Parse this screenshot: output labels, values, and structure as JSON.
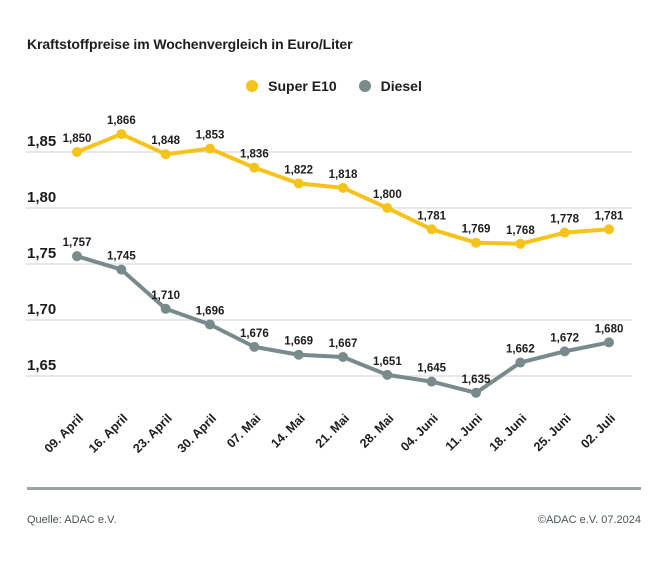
{
  "title": "Kraftstoffpreise im Wochenvergleich in Euro/Liter",
  "chart_data": {
    "type": "line",
    "title": "Kraftstoffpreise im Wochenvergleich in Euro/Liter",
    "xlabel": "",
    "ylabel": "Euro/Liter",
    "categories": [
      "09. April",
      "16. April",
      "23. April",
      "30. April",
      "07. Mai",
      "14. Mai",
      "21. Mai",
      "28. Mai",
      "04. Juni",
      "11. Juni",
      "18. Juni",
      "25. Juni",
      "02. Juli"
    ],
    "series": [
      {
        "name": "Super E10",
        "color": "#F5C31B",
        "values": [
          1.85,
          1.866,
          1.848,
          1.853,
          1.836,
          1.822,
          1.818,
          1.8,
          1.781,
          1.769,
          1.768,
          1.778,
          1.781
        ]
      },
      {
        "name": "Diesel",
        "color": "#798A8C",
        "values": [
          1.757,
          1.745,
          1.71,
          1.696,
          1.676,
          1.669,
          1.667,
          1.651,
          1.645,
          1.635,
          1.662,
          1.672,
          1.68
        ]
      }
    ],
    "yticks": [
      1.85,
      1.8,
      1.75,
      1.7,
      1.65
    ],
    "ylim": [
      1.62,
      1.88
    ],
    "grid": true,
    "legend_position": "top",
    "value_format": "comma-decimal"
  },
  "footer": {
    "source": "Quelle: ADAC e.V.",
    "copyright": "©ADAC e.V. 07.2024"
  },
  "colors": {
    "grid": "#D8DCDC",
    "text": "#1D1D1B",
    "footer_line": "#9AA4A4",
    "background": "#FFFFFF",
    "super_e10": "#F5C31B",
    "diesel": "#798A8C"
  }
}
